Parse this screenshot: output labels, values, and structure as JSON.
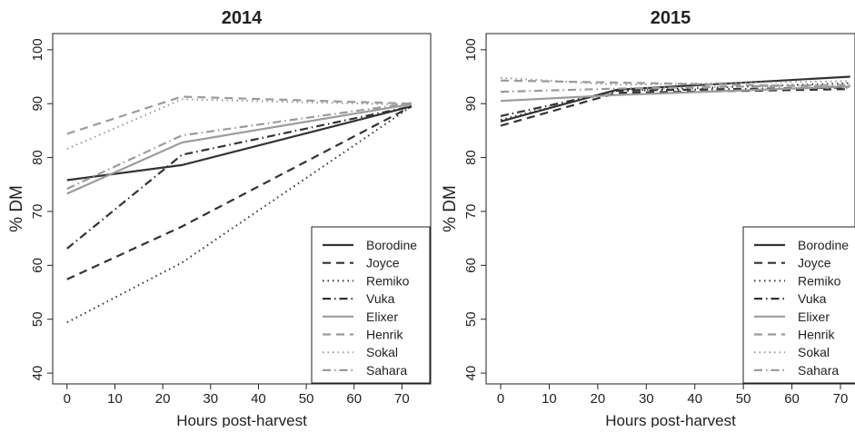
{
  "chart_data": [
    {
      "type": "line",
      "title": "2014",
      "xlabel": "Hours post-harvest",
      "ylabel": "% DM",
      "xlim": [
        -3,
        76
      ],
      "ylim": [
        38,
        103
      ],
      "xticks": [
        0,
        10,
        20,
        30,
        40,
        50,
        60,
        70
      ],
      "yticks": [
        40,
        50,
        60,
        70,
        80,
        90,
        100
      ],
      "x": [
        0,
        24,
        72
      ],
      "legend_position": "bottom-right",
      "series": [
        {
          "name": "Borodine",
          "values": [
            75.8,
            78.6,
            89.5
          ]
        },
        {
          "name": "Joyce",
          "values": [
            57.4,
            67.2,
            89.5
          ]
        },
        {
          "name": "Remiko",
          "values": [
            49.4,
            60.5,
            89.5
          ]
        },
        {
          "name": "Vuka",
          "values": [
            63.1,
            80.5,
            89.5
          ]
        },
        {
          "name": "Elixer",
          "values": [
            73.3,
            82.8,
            89.9
          ]
        },
        {
          "name": "Henrik",
          "values": [
            84.4,
            91.3,
            90.0
          ]
        },
        {
          "name": "Sokal",
          "values": [
            81.6,
            90.8,
            89.8
          ]
        },
        {
          "name": "Sahara",
          "values": [
            74.2,
            84.1,
            90.1
          ]
        }
      ]
    },
    {
      "type": "line",
      "title": "2015",
      "xlabel": "Hours post-harvest",
      "ylabel": "% DM",
      "xlim": [
        -3,
        73
      ],
      "ylim": [
        38,
        103
      ],
      "xticks": [
        0,
        10,
        20,
        30,
        40,
        50,
        60,
        70
      ],
      "yticks": [
        40,
        50,
        60,
        70,
        80,
        90,
        100
      ],
      "x": [
        0,
        24,
        72
      ],
      "legend_position": "bottom-right",
      "series": [
        {
          "name": "Borodine",
          "values": [
            86.7,
            92.6,
            95.0
          ]
        },
        {
          "name": "Joyce",
          "values": [
            85.9,
            92.0,
            92.7
          ]
        },
        {
          "name": "Remiko",
          "values": [
            87.0,
            92.4,
            93.8
          ]
        },
        {
          "name": "Vuka",
          "values": [
            87.7,
            92.4,
            93.0
          ]
        },
        {
          "name": "Elixer",
          "values": [
            90.5,
            91.6,
            93.2
          ]
        },
        {
          "name": "Henrik",
          "values": [
            94.3,
            93.9,
            93.1
          ]
        },
        {
          "name": "Sokal",
          "values": [
            94.8,
            93.5,
            94.2
          ]
        },
        {
          "name": "Sahara",
          "values": [
            92.2,
            92.8,
            93.5
          ]
        }
      ]
    }
  ],
  "series_styles": [
    {
      "color": "#333333",
      "dash": "",
      "width": 2.2
    },
    {
      "color": "#333333",
      "dash": "9,6",
      "width": 2.2
    },
    {
      "color": "#333333",
      "dash": "1.5,4",
      "width": 2.0
    },
    {
      "color": "#333333",
      "dash": "9,4,1.5,4",
      "width": 2.2
    },
    {
      "color": "#9b9b9b",
      "dash": "",
      "width": 2.2
    },
    {
      "color": "#9b9b9b",
      "dash": "9,6",
      "width": 2.2
    },
    {
      "color": "#9b9b9b",
      "dash": "1.5,4",
      "width": 2.0
    },
    {
      "color": "#9b9b9b",
      "dash": "9,4,1.5,4",
      "width": 2.2
    }
  ]
}
